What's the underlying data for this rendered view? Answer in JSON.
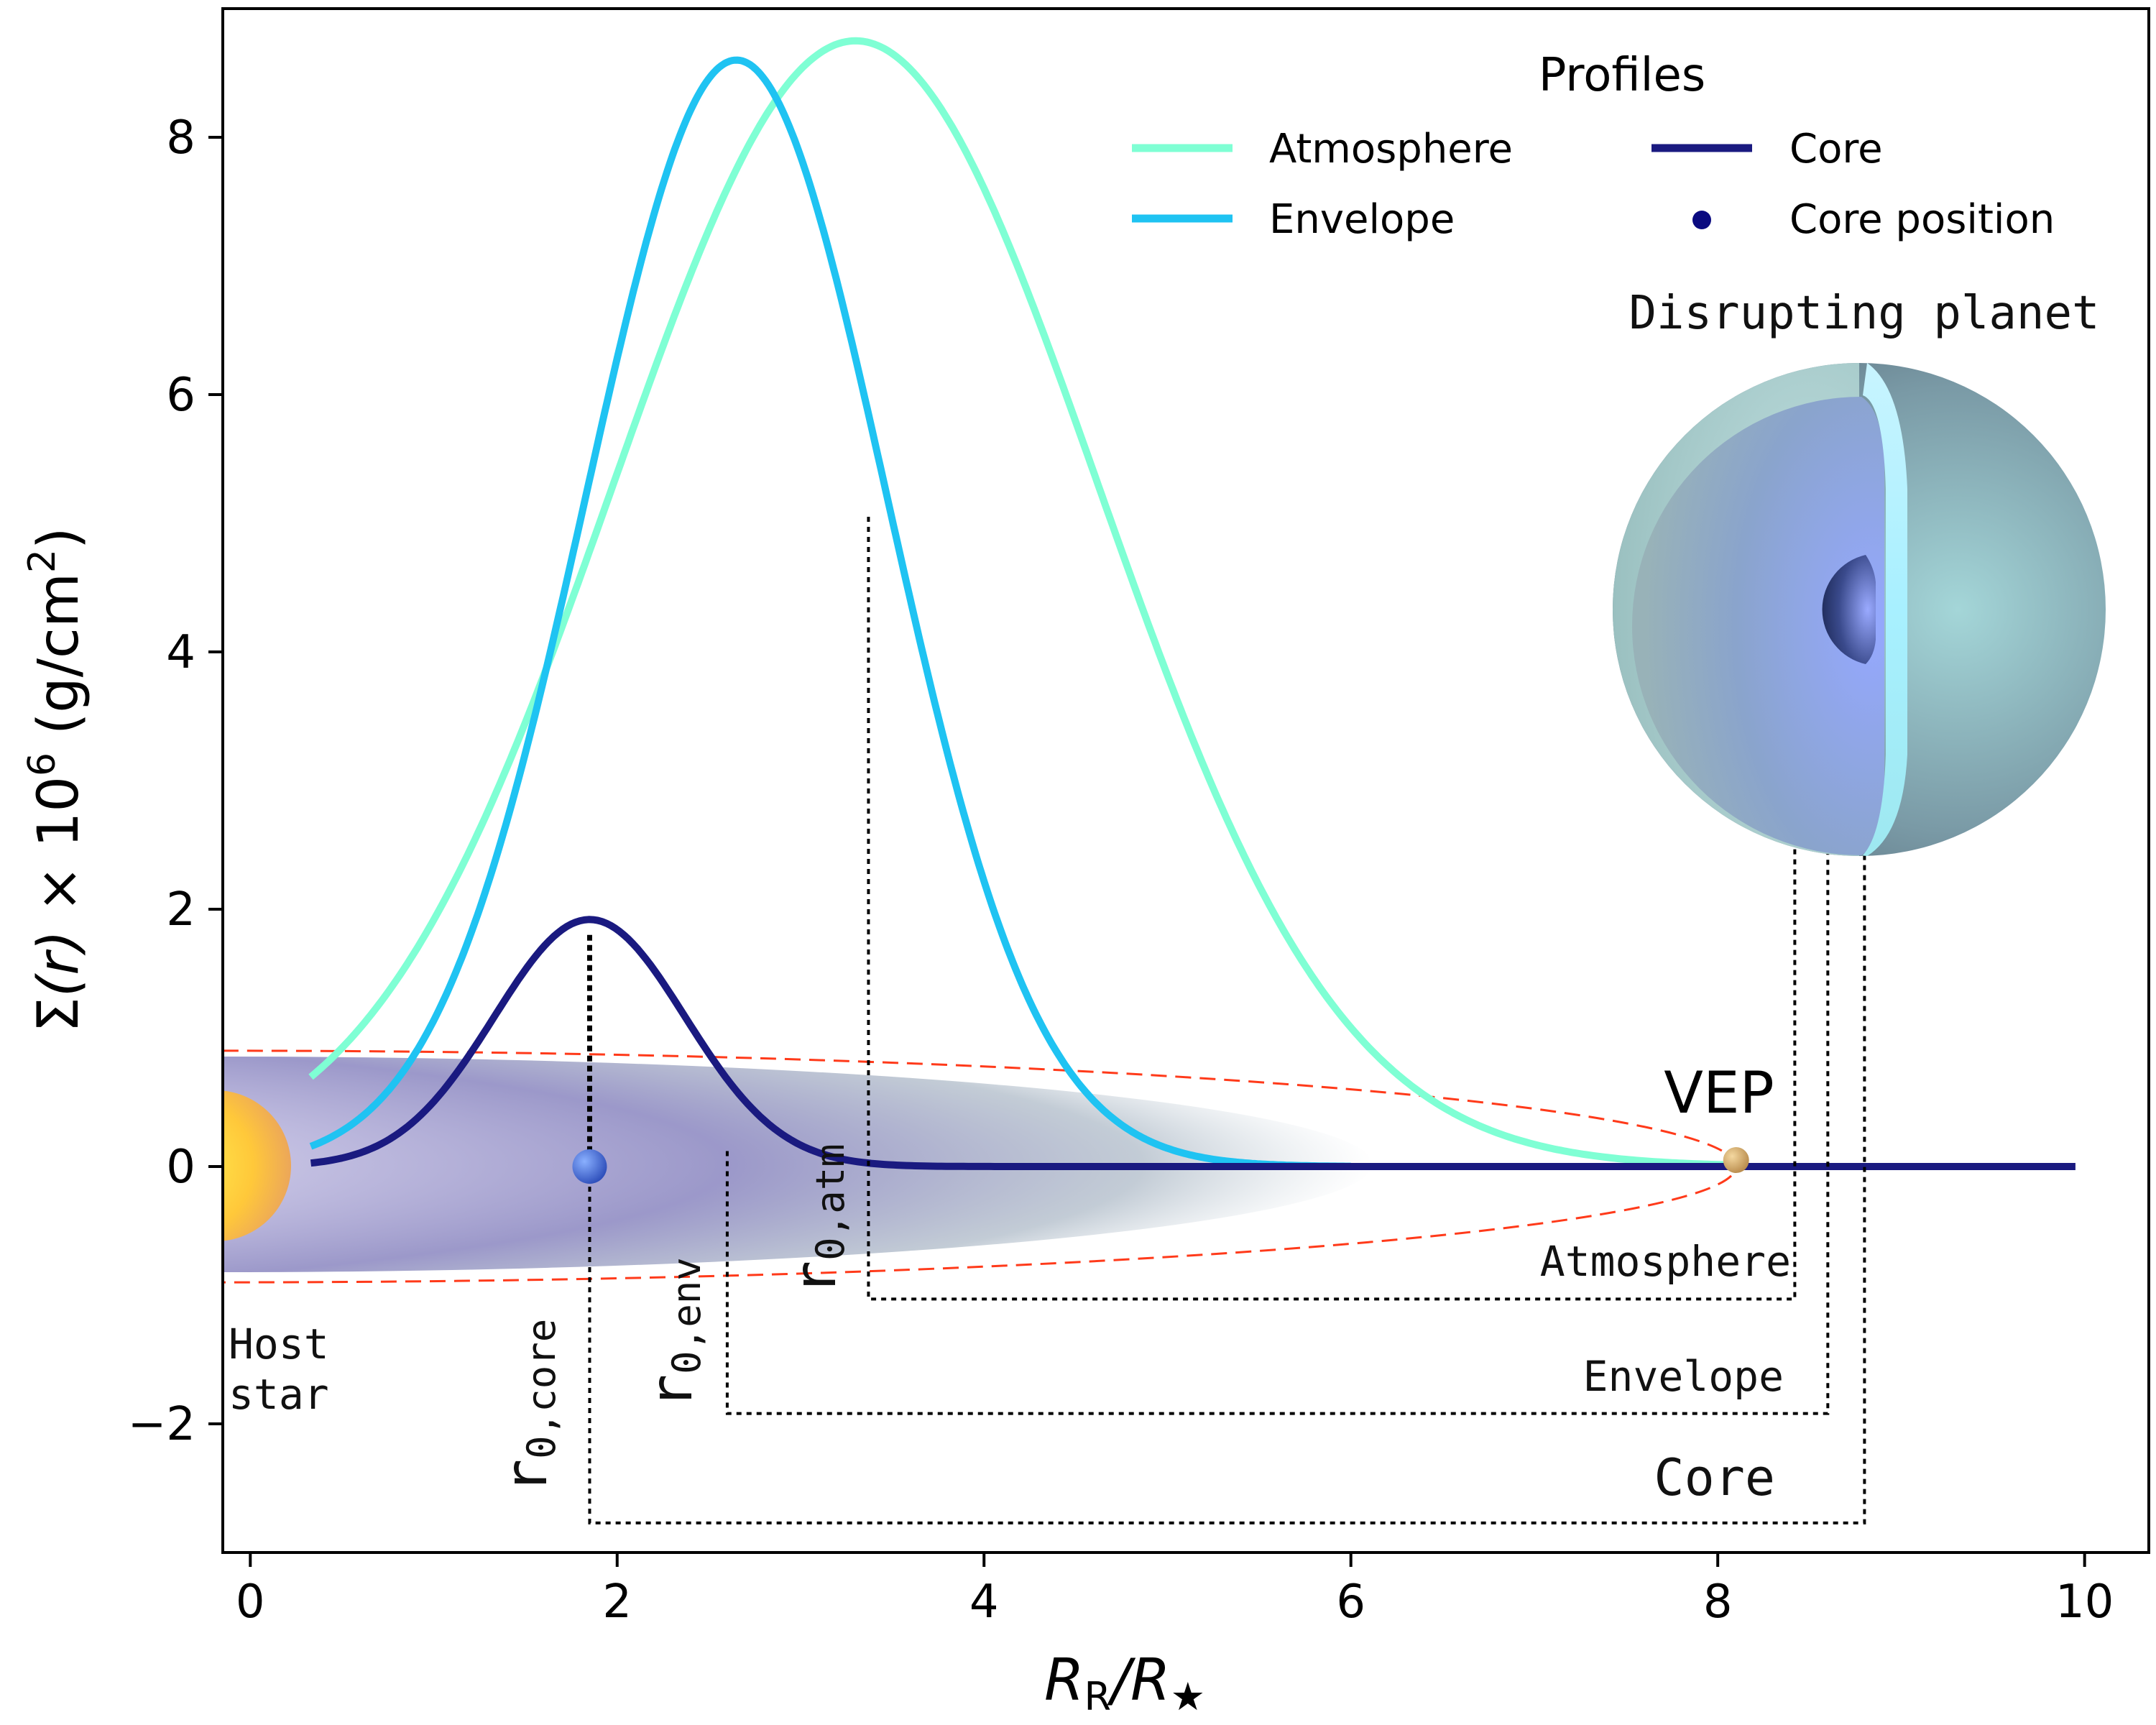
{
  "chart_data": {
    "type": "line",
    "title": "",
    "xlabel": "R_R/R_★",
    "ylabel": "Σ(r) × 10^6 (g/cm^2)",
    "xlabel_parts": {
      "main": "R",
      "sub": "R",
      "div": "/R",
      "star": "★"
    },
    "ylabel_parts": {
      "sigma": "Σ",
      "r": "(r)",
      "times": " × 10",
      "exp6": "6",
      "unit": " (g/cm",
      "exp2": "2",
      "close": ")"
    },
    "xlim": [
      -0.15,
      10.35
    ],
    "ylim": [
      -3.0,
      9.0
    ],
    "xticks": [
      0,
      2,
      4,
      6,
      8,
      10
    ],
    "yticks": [
      -2,
      0,
      2,
      4,
      6,
      8
    ],
    "ytick_labels": [
      "−2",
      "0",
      "2",
      "4",
      "6",
      "8"
    ],
    "series": [
      {
        "name": "Atmosphere",
        "color": "#7fffd4",
        "model": "gaussian",
        "amplitude": 8.75,
        "center": 3.3,
        "sigma": 1.32,
        "x_range": [
          0.33,
          8.1
        ]
      },
      {
        "name": "Envelope",
        "color": "#1fc3f2",
        "model": "gaussian",
        "amplitude": 8.6,
        "center": 2.65,
        "sigma": 0.82,
        "x_range": [
          0.33,
          6.0
        ]
      },
      {
        "name": "Core",
        "color": "#1a1a80",
        "model": "gaussian",
        "amplitude": 1.92,
        "center": 1.85,
        "sigma": 0.52,
        "x_range": [
          0.33,
          9.95
        ]
      }
    ],
    "points": [
      {
        "name": "Core position",
        "x": 1.85,
        "y": 0.0,
        "color": "#3050d0"
      },
      {
        "name": "VEP",
        "x": 8.1,
        "y": 0.05,
        "color": "#c8a060"
      }
    ],
    "legend": {
      "title": "Profiles",
      "position": "top-right",
      "entries": [
        {
          "label": "Atmosphere",
          "marker": "line",
          "color": "#7fffd4"
        },
        {
          "label": "Core",
          "marker": "line",
          "color": "#1a1a80"
        },
        {
          "label": "Envelope",
          "marker": "line",
          "color": "#1fc3f2"
        },
        {
          "label": "Core position",
          "marker": "dot",
          "color": "#0a0a80"
        }
      ]
    },
    "annotations": {
      "host_star": [
        "Host",
        "star"
      ],
      "vep": "VEP",
      "planet_title": "Disrupting planet",
      "r0_core": {
        "base": "r",
        "sub": "0,core",
        "x": 1.85,
        "y_top": 1.8
      },
      "r0_env": {
        "base": "r",
        "sub": "0,env",
        "x": 2.6,
        "y_top": 0.12
      },
      "r0_atm": {
        "base": "r",
        "sub": "0,atm",
        "x": 3.37,
        "y_top": 5.05
      },
      "bracket_labels": [
        "Atmosphere",
        "Envelope",
        "Core"
      ]
    }
  },
  "colors": {
    "orbit": "#ff3a1a",
    "stream": "#7e7ab8",
    "star_center": "#ffe84a",
    "star_edge": "#f0a050"
  }
}
